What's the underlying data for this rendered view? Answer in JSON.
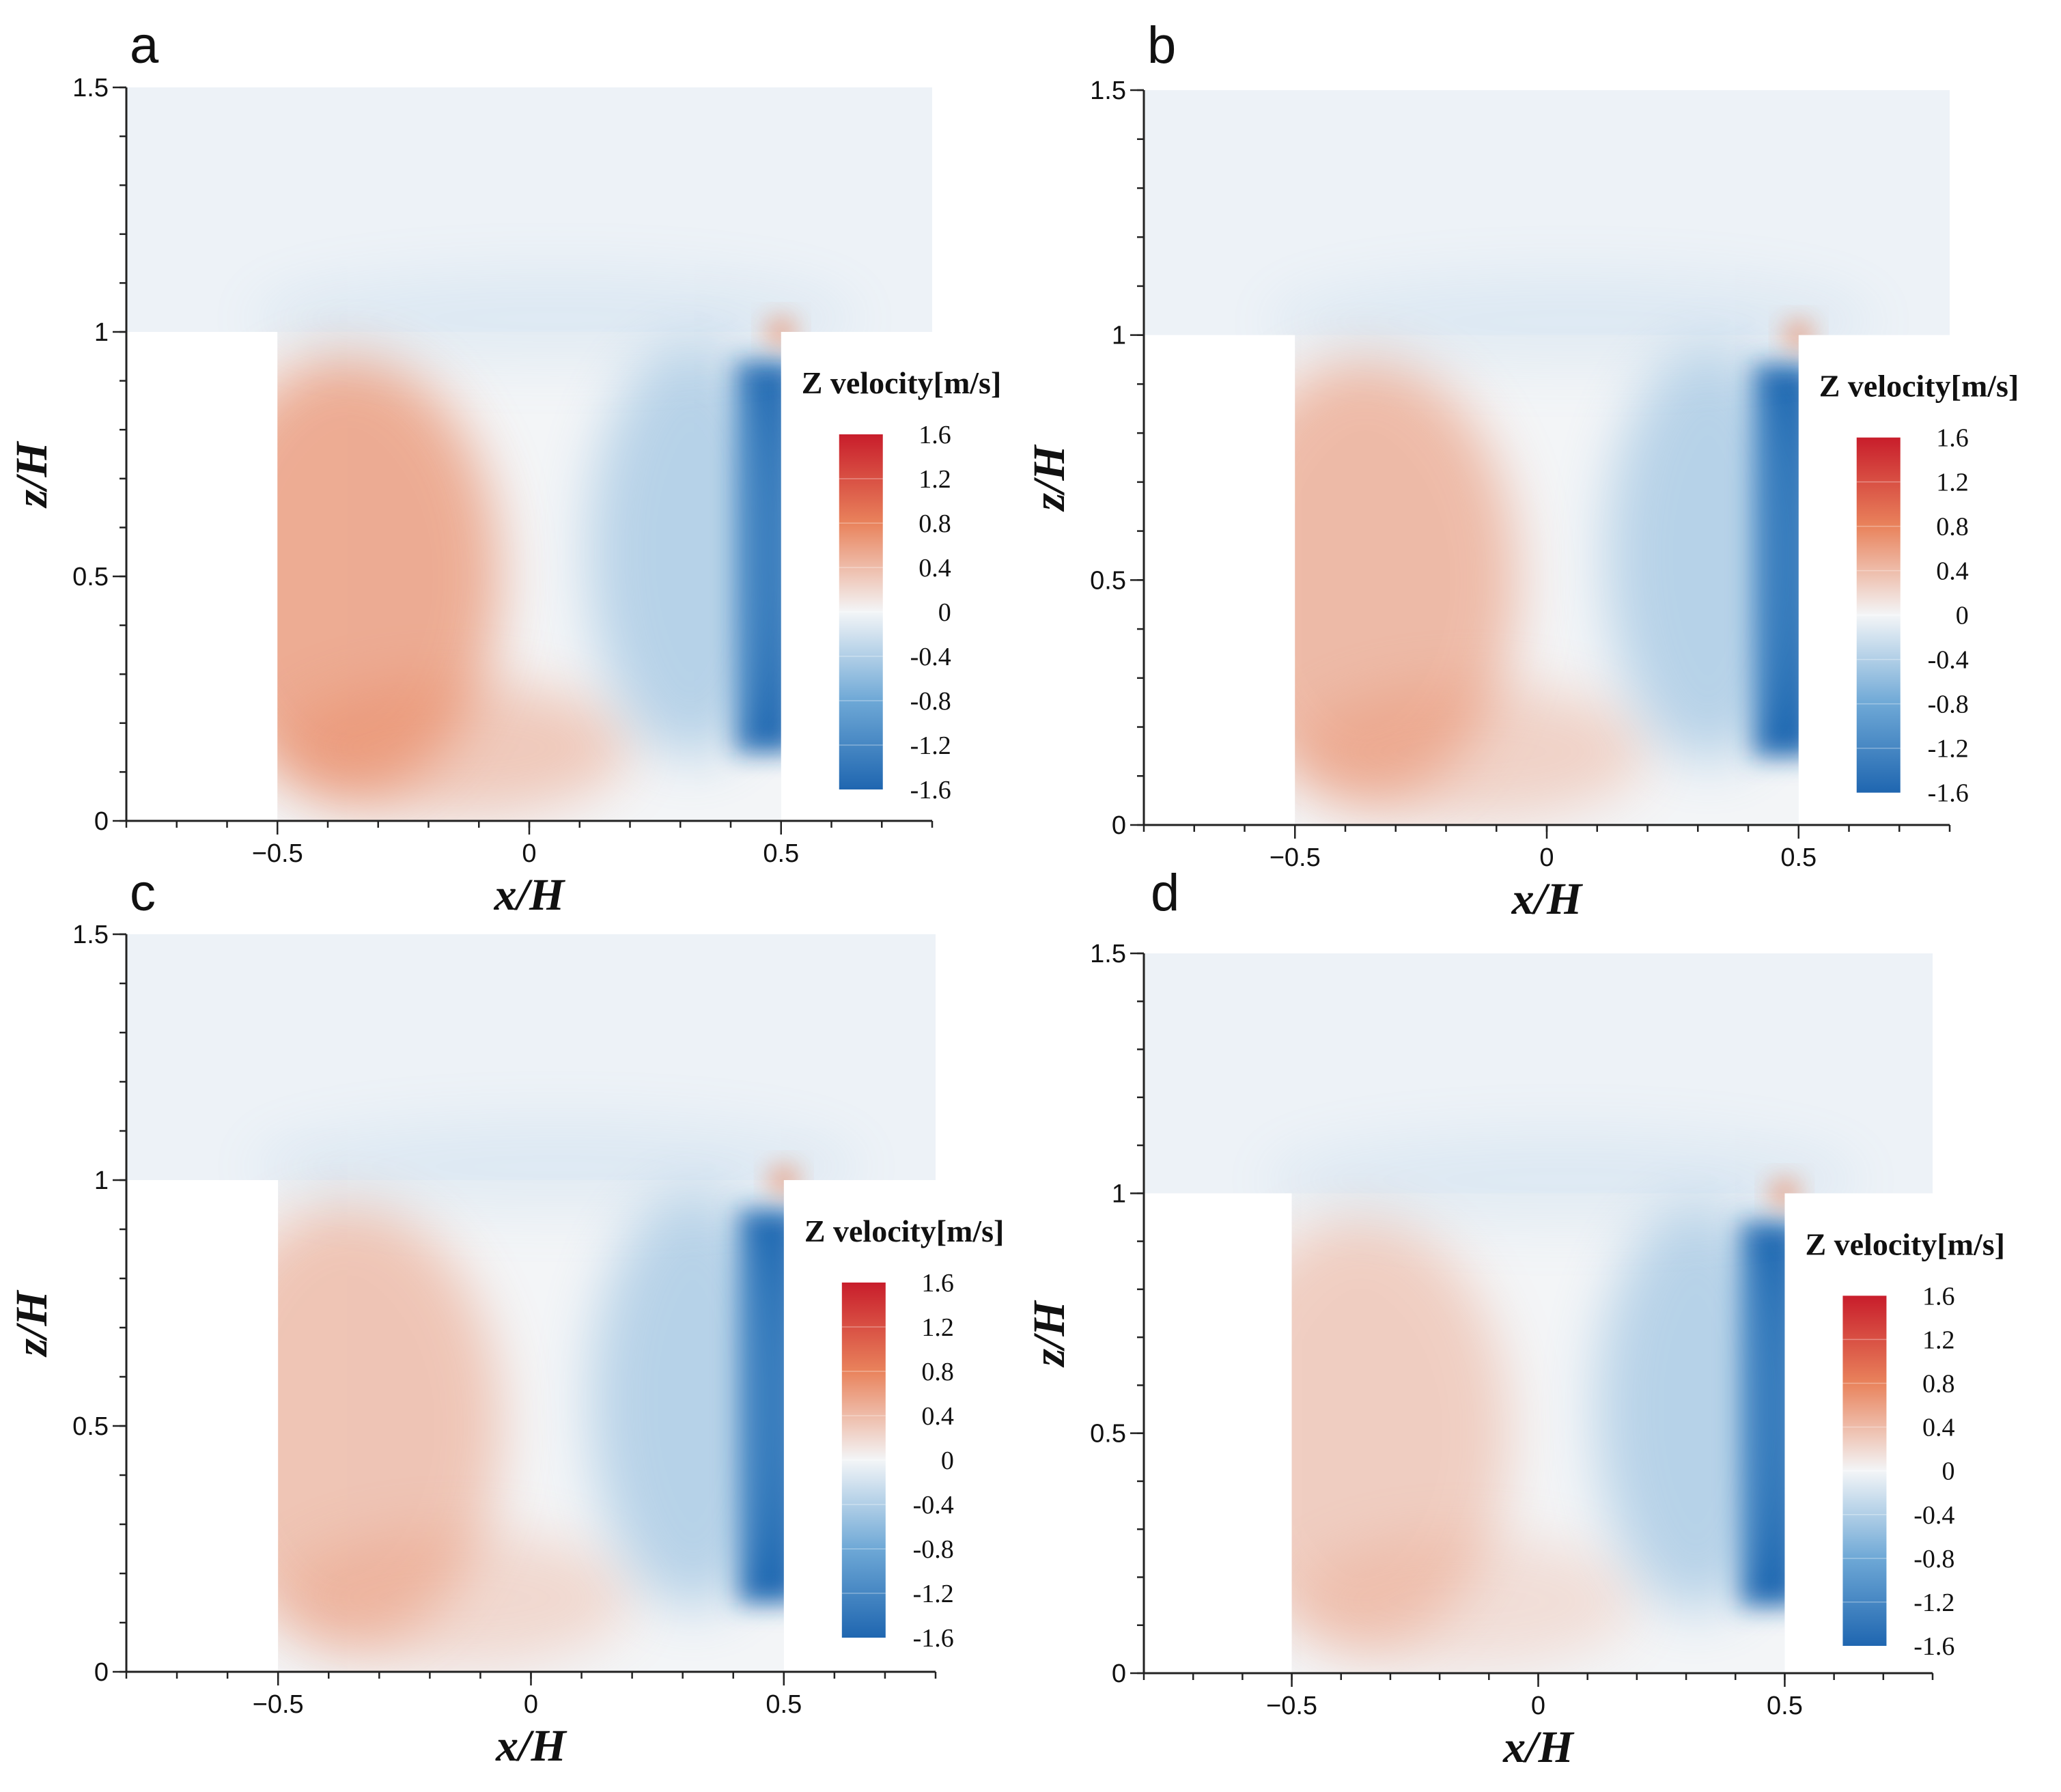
{
  "colors": {
    "positive_max": "#c81d2b",
    "positive_mid": "#e9835c",
    "neutral": "#f3f5f7",
    "negative_mid": "#6ea8d6",
    "negative_max": "#1f66b0",
    "ambient": "#edf2f7"
  },
  "colorbar": {
    "title": "Z velocity[m/s]",
    "labels": [
      "1.6",
      "1.2",
      "0.8",
      "0.4",
      "0",
      "-0.4",
      "-0.8",
      "-1.2",
      "-1.6"
    ],
    "range": [
      -1.6,
      1.6
    ]
  },
  "chart_data": [
    {
      "type": "heatmap",
      "panel": "a",
      "title": "",
      "xlabel": "x/H",
      "ylabel": "z/H",
      "xlim": [
        -0.8,
        0.8
      ],
      "ylim": [
        0,
        1.5
      ],
      "x_ticks": [
        "−0.5",
        "0",
        "0.5"
      ],
      "x_tick_values": [
        -0.5,
        0,
        0.5
      ],
      "y_ticks": [
        "0",
        "0.5",
        "1",
        "1.5"
      ],
      "y_tick_values": [
        0,
        0.5,
        1,
        1.5
      ],
      "colorbar_title": "Z velocity[m/s]",
      "colorbar_range": [
        -1.6,
        1.6
      ],
      "canyon": {
        "x_left": -0.5,
        "x_right": 0.5,
        "height": 1.0
      },
      "peak_upward_velocity": 0.9,
      "peak_downward_velocity": -1.5
    },
    {
      "type": "heatmap",
      "panel": "b",
      "title": "",
      "xlabel": "x/H",
      "ylabel": "z/H",
      "xlim": [
        -0.8,
        0.8
      ],
      "ylim": [
        0,
        1.5
      ],
      "x_ticks": [
        "−0.5",
        "0",
        "0.5"
      ],
      "x_tick_values": [
        -0.5,
        0,
        0.5
      ],
      "y_ticks": [
        "0",
        "0.5",
        "1",
        "1.5"
      ],
      "y_tick_values": [
        0,
        0.5,
        1,
        1.5
      ],
      "colorbar_title": "Z velocity[m/s]",
      "colorbar_range": [
        -1.6,
        1.6
      ],
      "canyon": {
        "x_left": -0.5,
        "x_right": 0.5,
        "height": 1.0
      },
      "peak_upward_velocity": 0.6,
      "peak_downward_velocity": -1.6
    },
    {
      "type": "heatmap",
      "panel": "c",
      "title": "",
      "xlabel": "x/H",
      "ylabel": "z/H",
      "xlim": [
        -0.8,
        0.8
      ],
      "ylim": [
        0,
        1.5
      ],
      "x_ticks": [
        "−0.5",
        "0",
        "0.5"
      ],
      "x_tick_values": [
        -0.5,
        0,
        0.5
      ],
      "y_ticks": [
        "0",
        "0.5",
        "1",
        "1.5"
      ],
      "y_tick_values": [
        0,
        0.5,
        1,
        1.5
      ],
      "colorbar_title": "Z velocity[m/s]",
      "colorbar_range": [
        -1.6,
        1.6
      ],
      "canyon": {
        "x_left": -0.5,
        "x_right": 0.5,
        "height": 1.0
      },
      "peak_upward_velocity": 0.4,
      "peak_downward_velocity": -1.6
    },
    {
      "type": "heatmap",
      "panel": "d",
      "title": "",
      "xlabel": "x/H",
      "ylabel": "z/H",
      "xlim": [
        -0.8,
        0.8
      ],
      "ylim": [
        0,
        1.5
      ],
      "x_ticks": [
        "−0.5",
        "0",
        "0.5"
      ],
      "x_tick_values": [
        -0.5,
        0,
        0.5
      ],
      "y_ticks": [
        "0",
        "0.5",
        "1",
        "1.5"
      ],
      "y_tick_values": [
        0,
        0.5,
        1,
        1.5
      ],
      "colorbar_title": "Z velocity[m/s]",
      "colorbar_range": [
        -1.6,
        1.6
      ],
      "canyon": {
        "x_left": -0.5,
        "x_right": 0.5,
        "height": 1.0
      },
      "peak_upward_velocity": 0.2,
      "peak_downward_velocity": -1.6
    }
  ]
}
